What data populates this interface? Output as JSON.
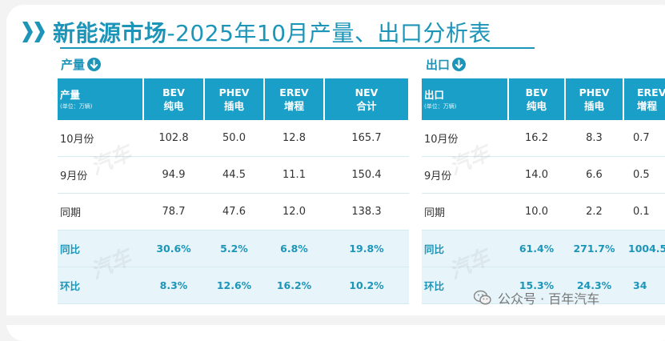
{
  "title": {
    "prefix": "新能源市场",
    "suffix": "-2025年10月产量、出口分析表"
  },
  "production": {
    "section_label": "产量",
    "corner_label": "产量",
    "unit": "(单位：万辆)",
    "headers": [
      {
        "code": "BEV",
        "name": "纯电"
      },
      {
        "code": "PHEV",
        "name": "插电"
      },
      {
        "code": "EREV",
        "name": "增程"
      },
      {
        "code": "NEV",
        "name": "合计"
      }
    ],
    "rows": [
      {
        "label": "10月份",
        "values": [
          "102.8",
          "50.0",
          "12.8",
          "165.7"
        ]
      },
      {
        "label": "9月份",
        "values": [
          "94.9",
          "44.5",
          "11.1",
          "150.4"
        ]
      },
      {
        "label": "同期",
        "values": [
          "78.7",
          "47.6",
          "12.0",
          "138.3"
        ]
      },
      {
        "label": "同比",
        "values": [
          "30.6%",
          "5.2%",
          "6.8%",
          "19.8%"
        ]
      },
      {
        "label": "环比",
        "values": [
          "8.3%",
          "12.6%",
          "16.2%",
          "10.2%"
        ]
      }
    ]
  },
  "export": {
    "section_label": "出口",
    "corner_label": "出口",
    "unit": "(单位：万辆)",
    "headers": [
      {
        "code": "BEV",
        "name": "纯电"
      },
      {
        "code": "PHEV",
        "name": "插电"
      },
      {
        "code": "EREV",
        "name": "增程"
      }
    ],
    "rows": [
      {
        "label": "10月份",
        "values": [
          "16.2",
          "8.3",
          "0.7"
        ]
      },
      {
        "label": "9月份",
        "values": [
          "14.0",
          "6.6",
          "0.5"
        ]
      },
      {
        "label": "同期",
        "values": [
          "10.0",
          "2.2",
          "0.1"
        ]
      },
      {
        "label": "同比",
        "values": [
          "61.4%",
          "271.7%",
          "1004.5"
        ]
      },
      {
        "label": "环比",
        "values": [
          "15.3%",
          "24.3%",
          "34"
        ]
      }
    ]
  },
  "watermark": {
    "text": "汽车"
  },
  "wechat_badge": {
    "text": "公众号 · 百年汽车"
  },
  "colors": {
    "accent": "#1d95b8",
    "header_bg": "#1aa0c8",
    "pct_row_bg": "#e7f5fb"
  }
}
